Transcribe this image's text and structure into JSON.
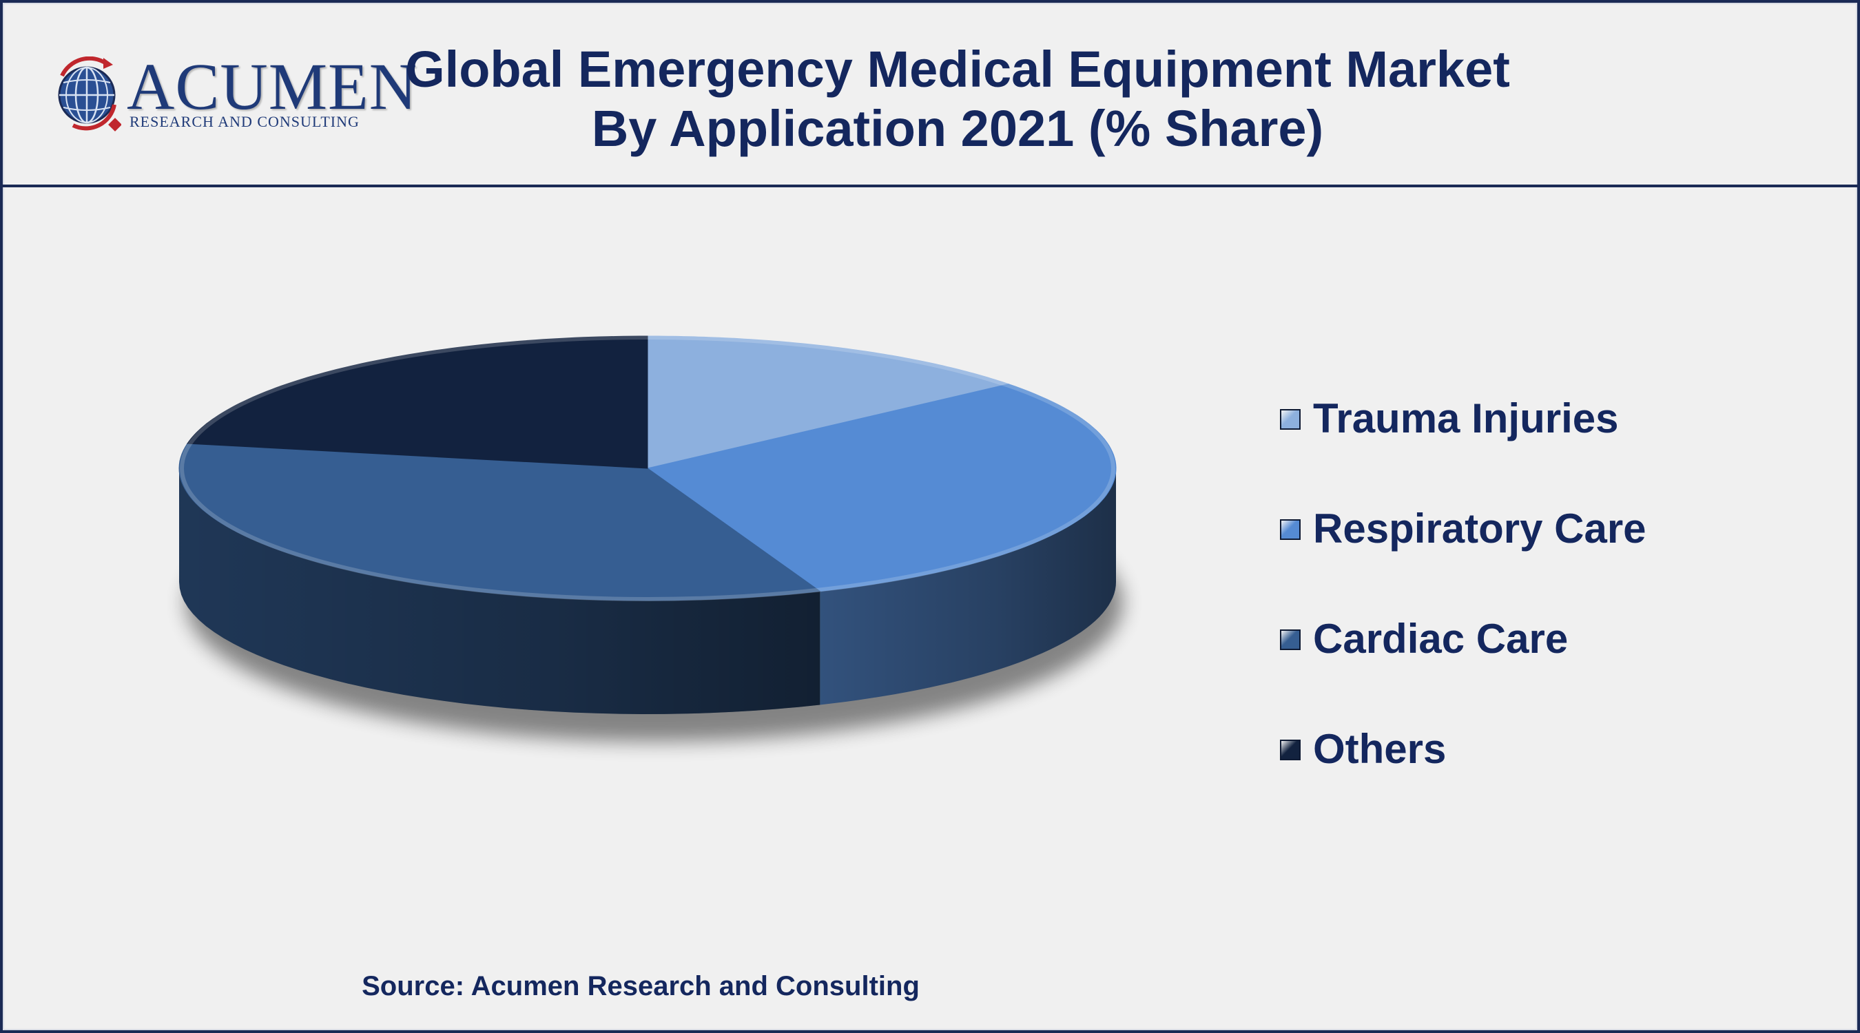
{
  "header": {
    "logo": {
      "wordmark": "ACUMEN",
      "tagline": "RESEARCH AND CONSULTING"
    },
    "title_line1": "Global Emergency Medical Equipment Market",
    "title_line2": "By Application 2021 (% Share)"
  },
  "chart_data": {
    "type": "pie",
    "title": "Global Emergency Medical Equipment Market By Application 2021 (% Share)",
    "categories": [
      "Trauma Injuries",
      "Respiratory Care",
      "Cardiac Care",
      "Others"
    ],
    "values": [
      14,
      30,
      34,
      22
    ],
    "colors": [
      "#8db0de",
      "#558bd4",
      "#365e92",
      "#12223f"
    ],
    "legend_position": "right",
    "style": "3d"
  },
  "legend": {
    "items": [
      {
        "label": "Trauma Injuries",
        "color": "#8db0de"
      },
      {
        "label": "Respiratory Care",
        "color": "#558bd4"
      },
      {
        "label": "Cardiac Care",
        "color": "#365e92"
      },
      {
        "label": "Others",
        "color": "#12223f"
      }
    ]
  },
  "footer": {
    "source": "Source: Acumen Research and Consulting"
  }
}
